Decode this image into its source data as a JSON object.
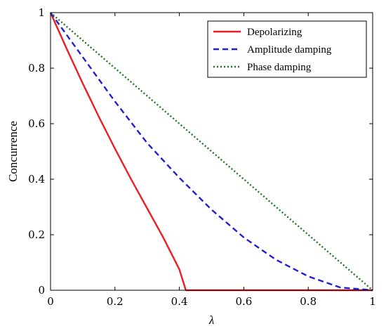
{
  "chart_data": {
    "type": "line",
    "title": "",
    "xlabel": "λ",
    "ylabel": "Concurrence",
    "xlim": [
      0,
      1
    ],
    "ylim": [
      0,
      1
    ],
    "xticks": [
      0,
      0.2,
      0.4,
      0.6,
      0.8,
      1
    ],
    "yticks": [
      0,
      0.2,
      0.4,
      0.6,
      0.8,
      1
    ],
    "xtick_labels": [
      "0",
      "0.2",
      "0.4",
      "0.6",
      "0.8",
      "1"
    ],
    "ytick_labels": [
      "0",
      "0.2",
      "0.4",
      "0.6",
      "0.8",
      "1"
    ],
    "grid": false,
    "legend_position": "top-right",
    "series": [
      {
        "name": "Depolarizing",
        "color": "#ee1c25",
        "style": "solid",
        "x": [
          0,
          0.05,
          0.1,
          0.15,
          0.2,
          0.25,
          0.3,
          0.35,
          0.4,
          0.42,
          0.5,
          0.6,
          0.7,
          0.8,
          0.9,
          1.0
        ],
        "y": [
          1.0,
          0.87,
          0.745,
          0.625,
          0.51,
          0.4,
          0.295,
          0.19,
          0.075,
          0.0,
          0.0,
          0.0,
          0.0,
          0.0,
          0.0,
          0.0
        ]
      },
      {
        "name": "Amplitude damping",
        "color": "#1f1fd6",
        "style": "dashed",
        "x": [
          0,
          0.1,
          0.2,
          0.3,
          0.4,
          0.5,
          0.6,
          0.7,
          0.8,
          0.9,
          1.0
        ],
        "y": [
          1.0,
          0.84,
          0.68,
          0.53,
          0.405,
          0.29,
          0.19,
          0.11,
          0.05,
          0.01,
          0.0
        ]
      },
      {
        "name": "Phase damping",
        "color": "#1a7a1a",
        "style": "dotted",
        "x": [
          0,
          1.0
        ],
        "y": [
          1.0,
          0.0
        ]
      }
    ]
  }
}
